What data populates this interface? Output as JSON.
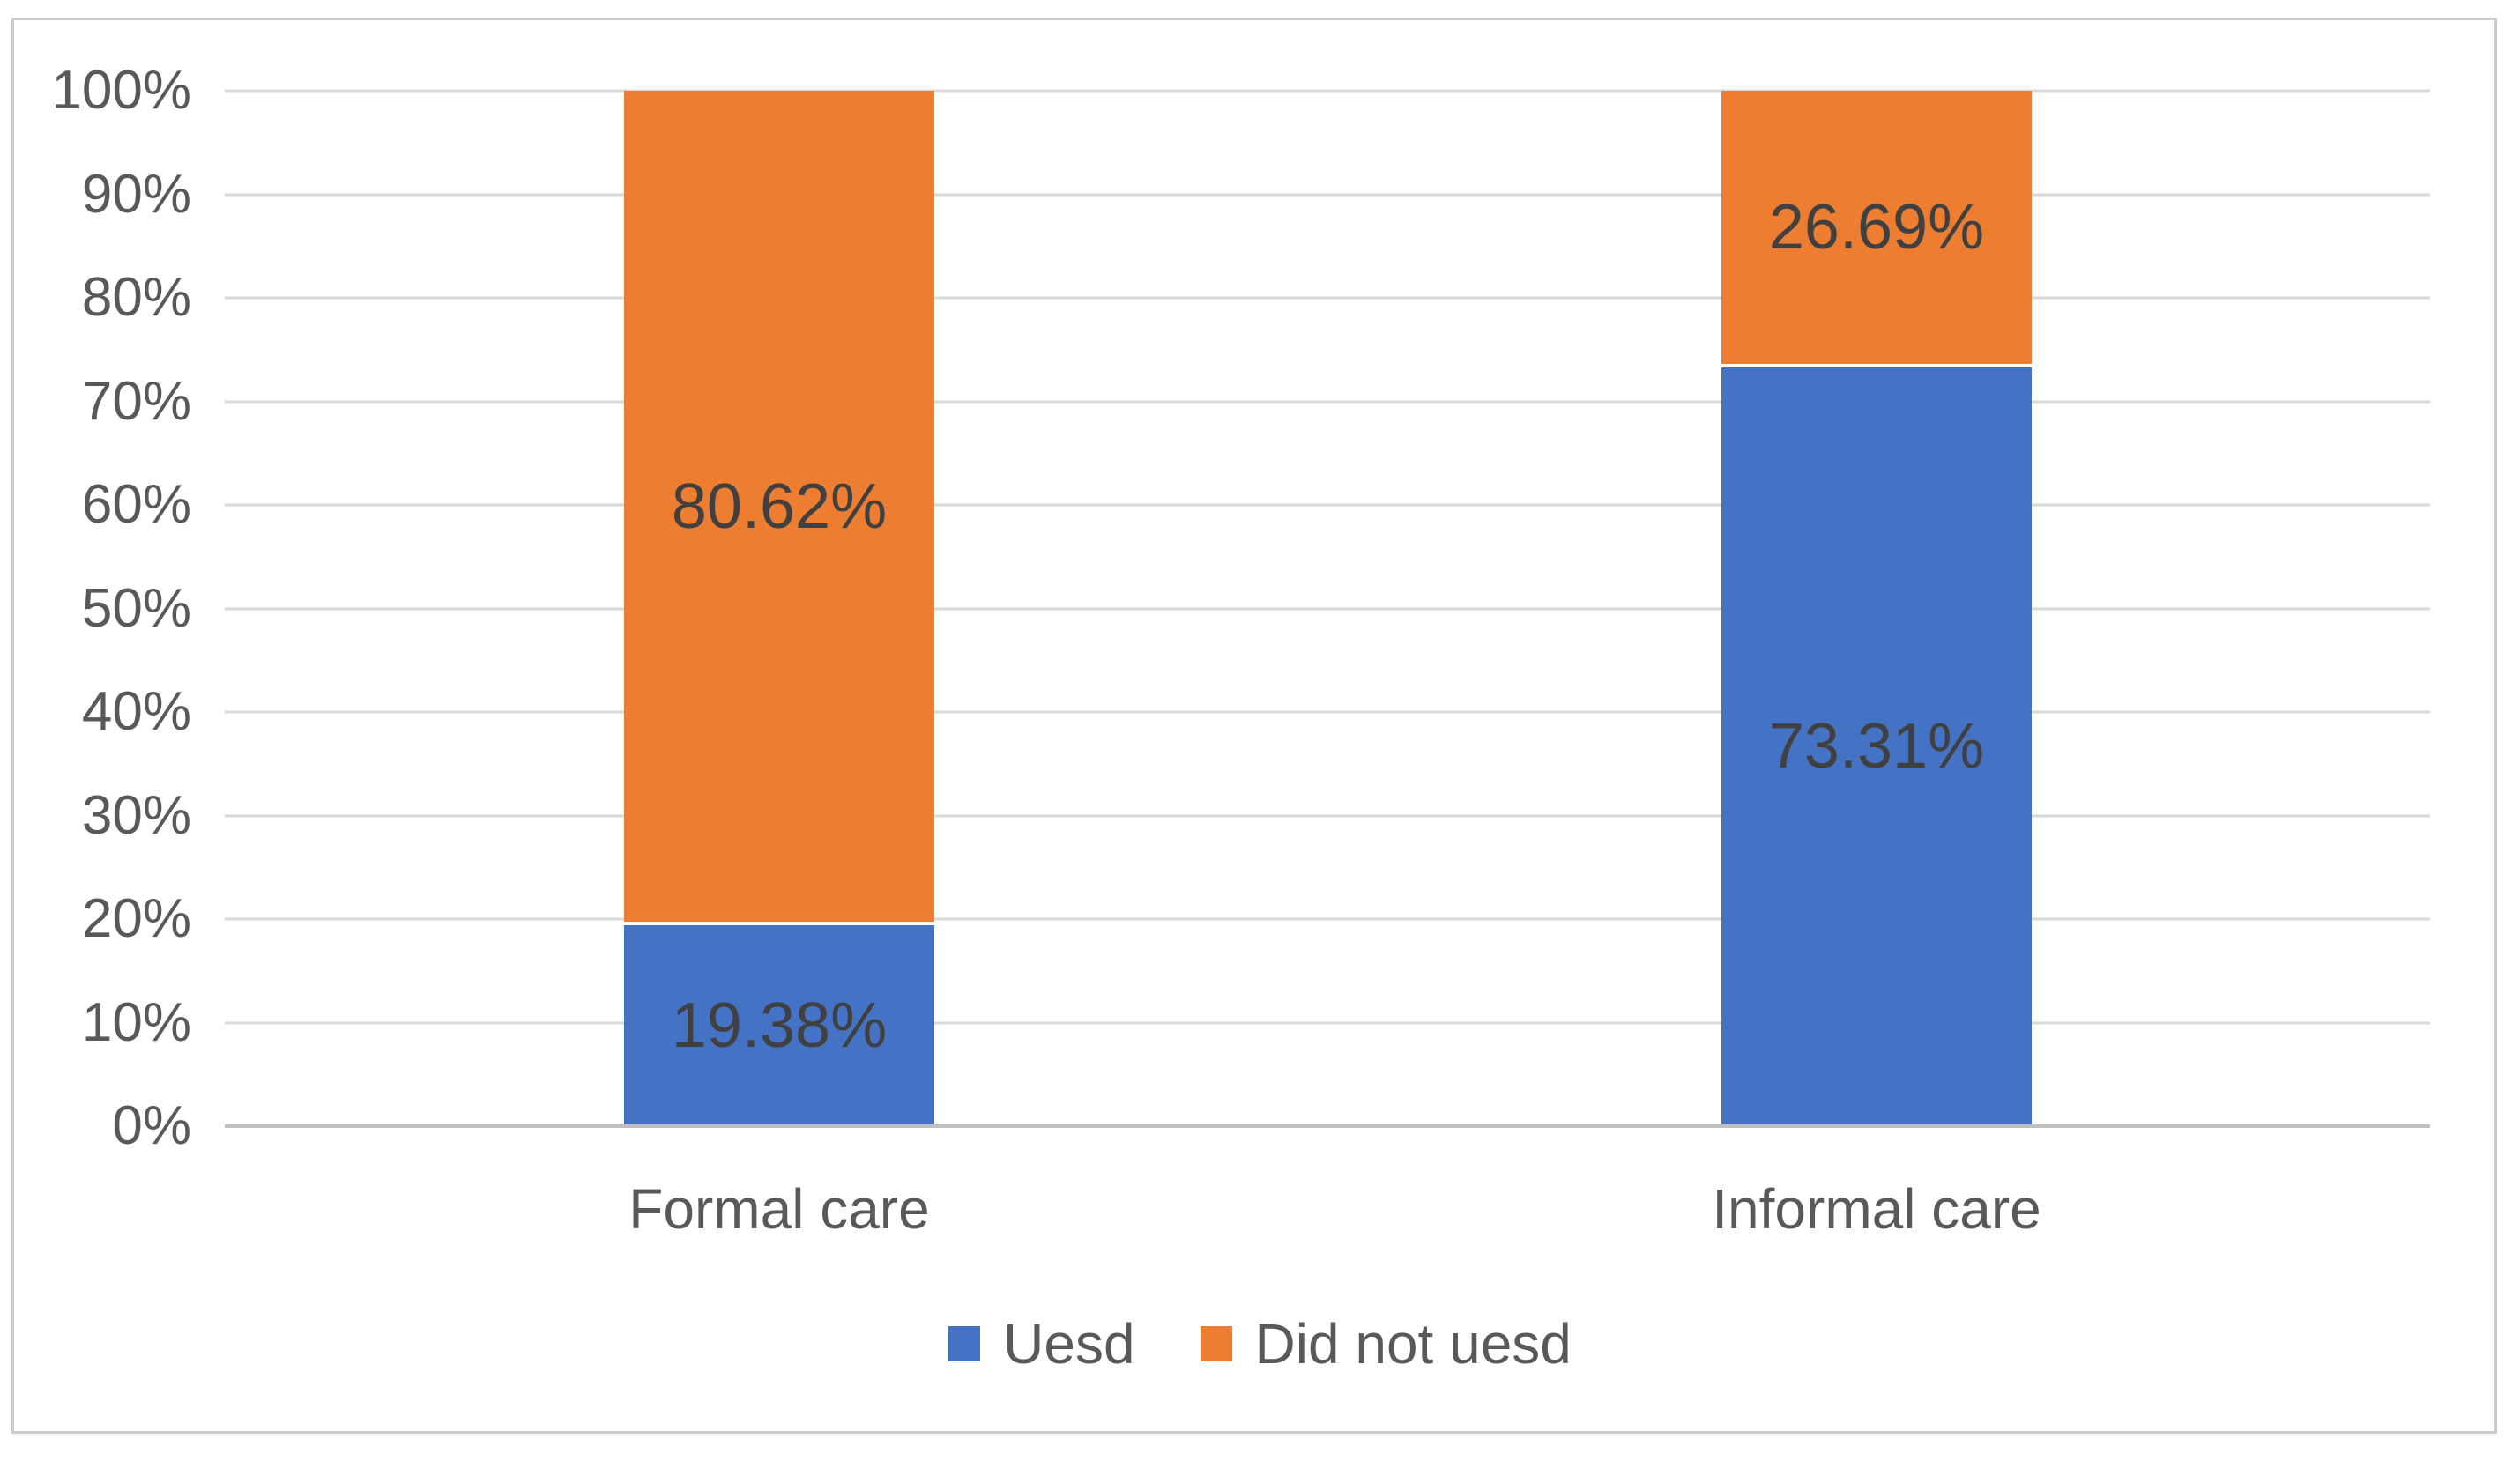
{
  "chart_data": {
    "type": "bar",
    "subtype": "stacked-column-100",
    "title": "",
    "xlabel": "",
    "ylabel": "",
    "categories": [
      "Formal care",
      "Informal care"
    ],
    "series": [
      {
        "name": "Uesd",
        "color": "#4472C4",
        "values": [
          19.38,
          73.31
        ],
        "labels": [
          "19.38%",
          "73.31%"
        ]
      },
      {
        "name": "Did not uesd",
        "color": "#ED7D31",
        "values": [
          80.62,
          26.69
        ],
        "labels": [
          "80.62%",
          "26.69%"
        ]
      }
    ],
    "y_axis": {
      "min": 0,
      "max": 100,
      "step": 10,
      "ticks": [
        "0%",
        "10%",
        "20%",
        "30%",
        "40%",
        "50%",
        "60%",
        "70%",
        "80%",
        "90%",
        "100%"
      ]
    },
    "grid": true,
    "legend_position": "bottom",
    "colors": {
      "gridline": "#d9d9d9",
      "axis_line": "#bfbfbf",
      "tick_label": "#595959",
      "data_label": "#404040",
      "frame_border": "#cbcbcb",
      "background": "#ffffff"
    }
  }
}
